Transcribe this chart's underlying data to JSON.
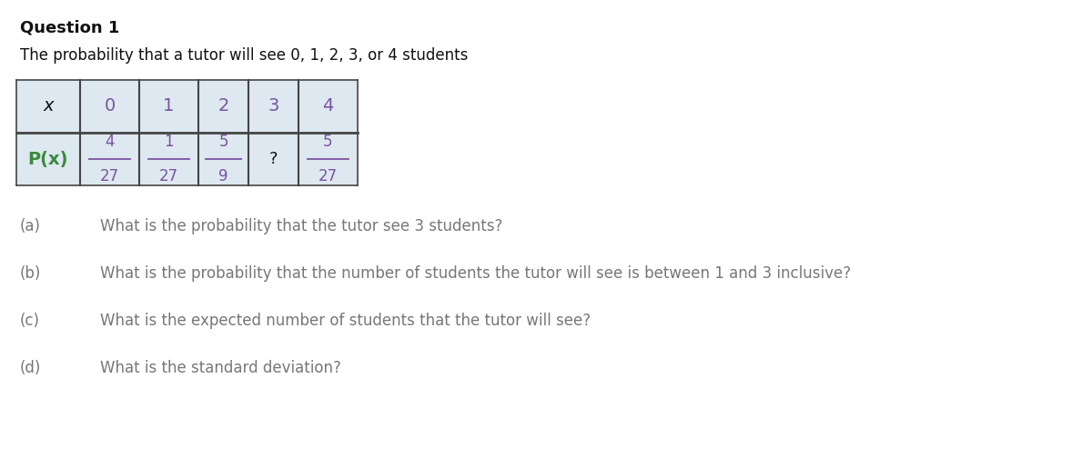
{
  "title": "Question 1",
  "subtitle": "The probability that a tutor will see 0, 1, 2, 3, or 4 students",
  "table": {
    "headers": [
      "x",
      "0",
      "1",
      "2",
      "3",
      "4"
    ],
    "row_label": "P(x)",
    "numerators": [
      "4",
      "1",
      "5",
      "?",
      "5"
    ],
    "denominators": [
      "27",
      "27",
      "9",
      "",
      "27"
    ]
  },
  "questions": [
    [
      "(a)",
      "What is the probability that the tutor see 3 students?"
    ],
    [
      "(b)",
      "What is the probability that the number of students the tutor will see is between 1 and 3 inclusive?"
    ],
    [
      "(c)",
      "What is the expected number of students that the tutor will see?"
    ],
    [
      "(d)",
      "What is the standard deviation?"
    ]
  ],
  "background_color": "#ffffff",
  "table_bg": "#dde8f0",
  "table_border": "#444444",
  "header_color": "#7b52a0",
  "px_label_color": "#3a8a3a",
  "frac_color": "#7b52a0",
  "text_color": "#111111",
  "question_color": "#777777",
  "title_fontsize": 13,
  "subtitle_fontsize": 12,
  "question_fontsize": 12,
  "table_header_fontsize": 14,
  "table_data_fontsize": 13
}
